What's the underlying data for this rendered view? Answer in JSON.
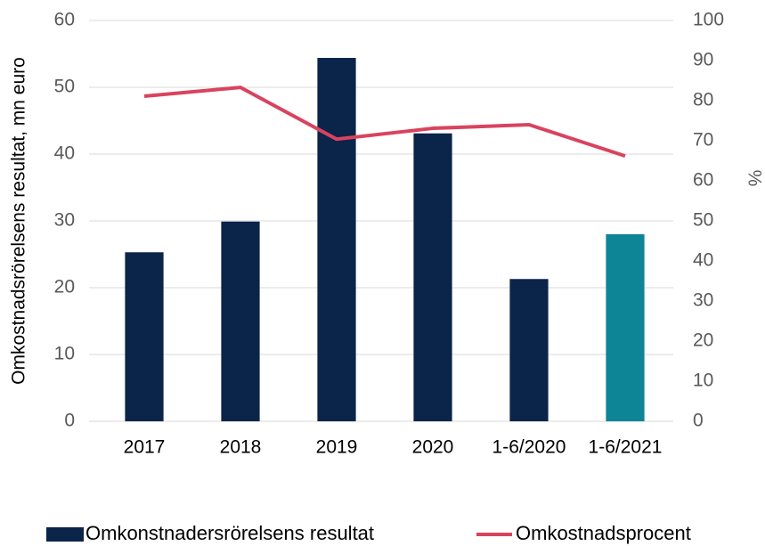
{
  "chart_data": {
    "type": "bar",
    "ylabel": "Omkostnadsrörelsens resultat, mn euro",
    "y2label": "%",
    "categories": [
      "2017",
      "2018",
      "2019",
      "2020",
      "1-6/2020",
      "1-6/2021"
    ],
    "series": [
      {
        "name": "Omkonstnadersrörelsens resultat",
        "type": "bar",
        "color": "#0b2449",
        "colors": [
          "#0b2449",
          "#0b2449",
          "#0b2449",
          "#0b2449",
          "#0b2449",
          "#0e8497"
        ],
        "values": [
          25.3,
          29.9,
          54.4,
          43.1,
          21.3,
          28.0
        ]
      },
      {
        "name": "Omkostnadsprocent",
        "type": "line",
        "axis": "y2",
        "color": "#d9435e",
        "values": [
          81.1,
          83.3,
          70.4,
          73.1,
          74.0,
          66.2
        ]
      }
    ],
    "ylim": [
      0,
      60
    ],
    "yticks": [
      0,
      10,
      20,
      30,
      40,
      50,
      60
    ],
    "y2lim": [
      0,
      100
    ],
    "y2ticks": [
      0,
      10,
      20,
      30,
      40,
      50,
      60,
      70,
      80,
      90,
      100
    ],
    "grid": true,
    "legend": "bottom"
  }
}
